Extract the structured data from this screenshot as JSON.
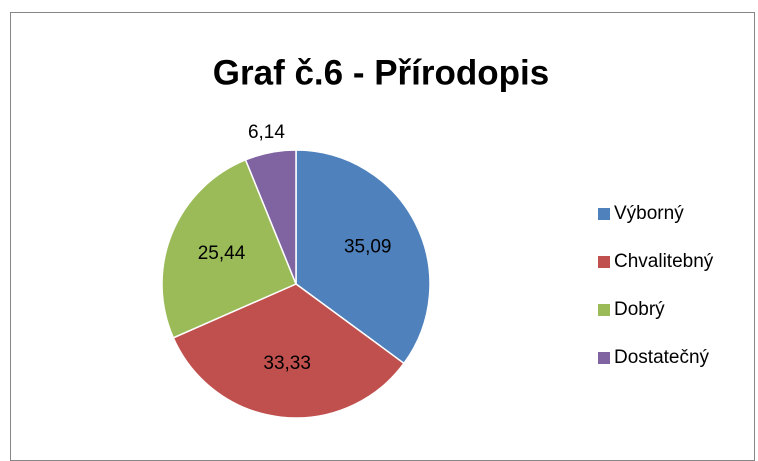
{
  "chart_data": {
    "type": "pie",
    "title": "Graf č.6 - Přírodopis",
    "categories": [
      "Výborný",
      "Chvalitebný",
      "Dobrý",
      "Dostatečný"
    ],
    "values": [
      35.09,
      33.33,
      25.44,
      6.14
    ],
    "value_labels": [
      "35,09",
      "33,33",
      "25,44",
      "6,14"
    ],
    "colors": [
      "#4f81bd",
      "#c0504d",
      "#9bbb59",
      "#8064a2"
    ],
    "legend": "right"
  }
}
